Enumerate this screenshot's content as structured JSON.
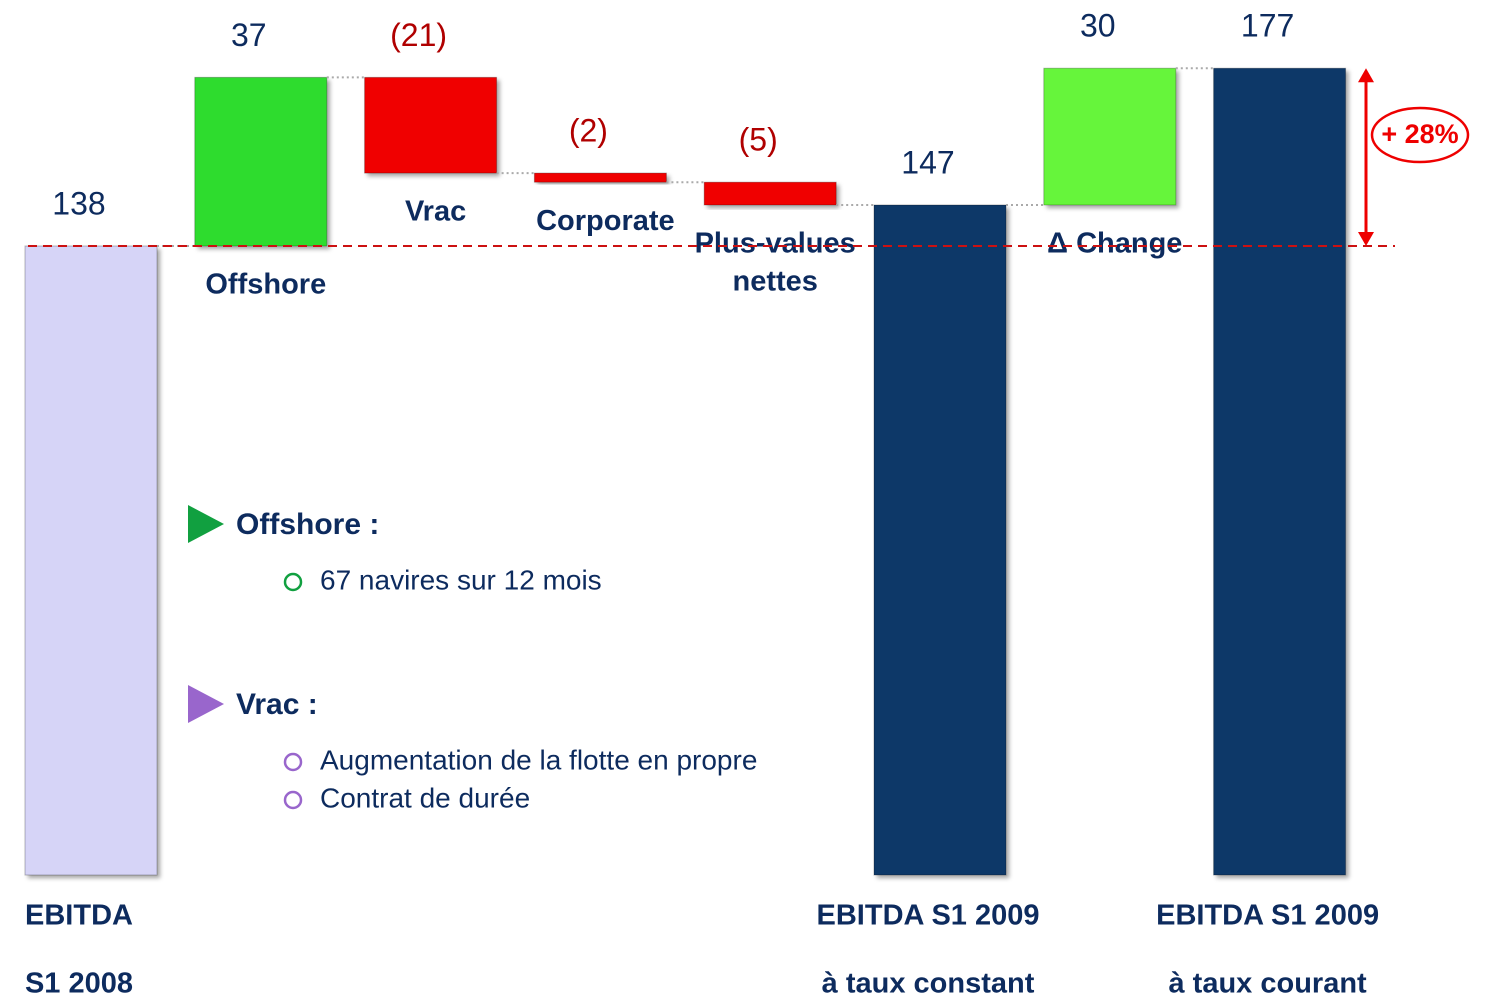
{
  "chart_data": {
    "type": "waterfall",
    "categories": [
      [
        "EBITDA",
        "S1 2008"
      ],
      [
        "Offshore"
      ],
      [
        "Vrac"
      ],
      [
        "Corporate"
      ],
      [
        "Plus-values",
        "nettes"
      ],
      [
        "EBITDA  S1 2009",
        "à taux constant"
      ],
      [
        "Δ Change"
      ],
      [
        "EBITDA  S1 2009",
        "à taux courant"
      ]
    ],
    "values": [
      138,
      37,
      -21,
      -2,
      -5,
      147,
      30,
      177
    ],
    "value_labels": [
      "138",
      "37",
      "(21)",
      "(2)",
      "(5)",
      "147",
      "30",
      "177"
    ],
    "measure": [
      "absolute",
      "relative",
      "relative",
      "relative",
      "relative",
      "absolute",
      "relative",
      "absolute"
    ],
    "colors": [
      "#d6d4f7",
      "#2fdc2f",
      "#f00000",
      "#f00000",
      "#f00000",
      "#0b3768",
      "#66f53a",
      "#0b3768"
    ],
    "ylim": [
      0,
      190
    ],
    "annotation": "+ 28%",
    "notes": [
      {
        "heading": "Offshore :",
        "color": "#11a040",
        "items": [
          "67 navires sur 12 mois"
        ]
      },
      {
        "heading": "Vrac :",
        "color": "#9966cc",
        "items": [
          "Augmentation de la flotte en propre",
          "Contrat de durée"
        ]
      }
    ]
  }
}
